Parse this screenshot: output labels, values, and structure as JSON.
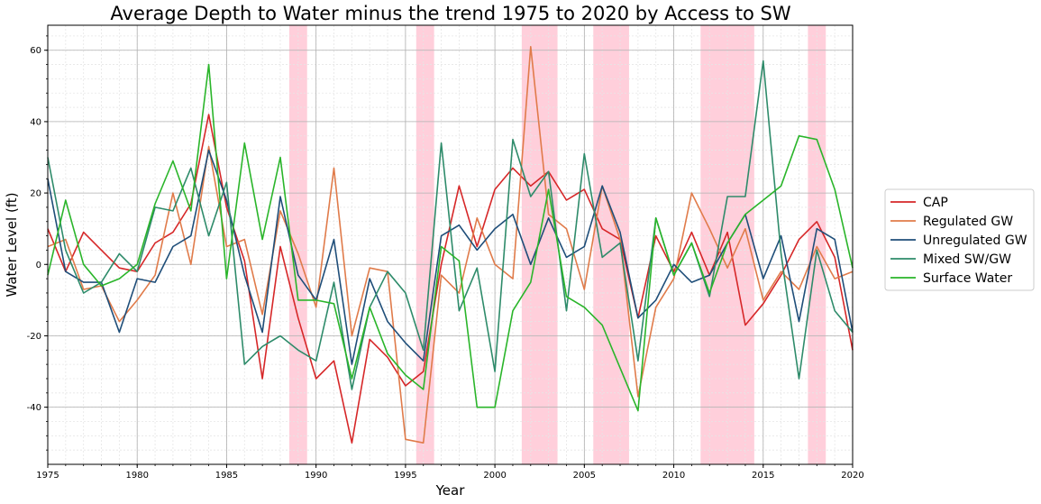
{
  "chart_data": {
    "type": "line",
    "title": "Average Depth to Water minus the trend 1975 to 2020 by Access to SW",
    "xlabel": "Year",
    "ylabel": "Water Level (ft)",
    "xlim": [
      1975,
      2020
    ],
    "ylim": [
      -56,
      67
    ],
    "xticks": [
      "1975",
      "1980",
      "1985",
      "1990",
      "1995",
      "2000",
      "2005",
      "2010",
      "2015",
      "2020"
    ],
    "yticks": [
      "-40",
      "-20",
      "0",
      "20",
      "40",
      "60"
    ],
    "grid": true,
    "legend_position": "right",
    "shaded_periods": [
      [
        1988.5,
        1989.5
      ],
      [
        1995.6,
        1996.6
      ],
      [
        2001.5,
        2003.5
      ],
      [
        2005.5,
        2007.5
      ],
      [
        2011.5,
        2014.5
      ],
      [
        2017.5,
        2018.5
      ]
    ],
    "shade_color": "#ffb6c8",
    "x": [
      1975,
      1976,
      1977,
      1978,
      1979,
      1980,
      1981,
      1982,
      1983,
      1984,
      1985,
      1986,
      1987,
      1988,
      1989,
      1990,
      1991,
      1992,
      1993,
      1994,
      1995,
      1996,
      1997,
      1998,
      1999,
      2000,
      2001,
      2002,
      2003,
      2004,
      2005,
      2006,
      2007,
      2008,
      2009,
      2010,
      2011,
      2012,
      2013,
      2014,
      2015,
      2016,
      2017,
      2018,
      2019,
      2020
    ],
    "series": [
      {
        "name": "CAP",
        "color": "#d62728",
        "values": [
          10,
          -2,
          9,
          4,
          -1,
          -2,
          6,
          9,
          17,
          42,
          16,
          1,
          -32,
          5,
          -15,
          -32,
          -27,
          -50,
          -21,
          -26,
          -34,
          -30,
          0,
          22,
          5,
          21,
          27,
          22,
          26,
          18,
          21,
          10,
          7,
          -15,
          8,
          -2,
          9,
          -3,
          9,
          -17,
          -11,
          -3,
          7,
          12,
          2,
          -24
        ]
      },
      {
        "name": "Regulated GW",
        "color": "#e07b4a",
        "values": [
          5,
          7,
          -7,
          -6,
          -16,
          -10,
          -3,
          20,
          0,
          33,
          5,
          7,
          -14,
          15,
          3,
          -12,
          27,
          -20,
          -1,
          -2,
          -49,
          -50,
          -3,
          -8,
          13,
          0,
          -4,
          61,
          14,
          10,
          -7,
          22,
          7,
          -37,
          -12,
          -4,
          20,
          10,
          -1,
          10,
          -10,
          -2,
          -7,
          5,
          -4,
          -2
        ]
      },
      {
        "name": "Unregulated GW",
        "color": "#1f4e79",
        "values": [
          24,
          -2,
          -5,
          -5,
          -19,
          -4,
          -5,
          5,
          8,
          32,
          18,
          -3,
          -19,
          19,
          -3,
          -10,
          7,
          -28,
          -4,
          -16,
          -22,
          -27,
          8,
          11,
          4,
          10,
          14,
          0,
          13,
          2,
          5,
          22,
          9,
          -15,
          -10,
          0,
          -5,
          -3,
          6,
          14,
          -4,
          8,
          -16,
          10,
          7,
          -19
        ]
      },
      {
        "name": "Mixed SW/GW",
        "color": "#2e8b6a",
        "values": [
          30,
          4,
          -8,
          -5,
          3,
          -2,
          16,
          15,
          27,
          8,
          23,
          -28,
          -23,
          -20,
          -24,
          -27,
          -5,
          -35,
          -12,
          -2,
          -8,
          -24,
          34,
          -13,
          -1,
          -30,
          35,
          19,
          26,
          -13,
          31,
          2,
          6,
          -27,
          13,
          -3,
          6,
          -9,
          19,
          19,
          57,
          3,
          -32,
          4,
          -13,
          -19
        ]
      },
      {
        "name": "Surface Water",
        "color": "#2ab52a",
        "values": [
          -3,
          18,
          0,
          -6,
          -4,
          0,
          17,
          29,
          15,
          56,
          -4,
          34,
          7,
          30,
          -10,
          -10,
          -11,
          -32,
          -12,
          -25,
          -31,
          -35,
          5,
          1,
          -40,
          -40,
          -13,
          -5,
          21,
          -9,
          -12,
          -17,
          -29,
          -41,
          13,
          -3,
          6,
          -8,
          6,
          14,
          18,
          22,
          36,
          35,
          21,
          -1
        ]
      }
    ]
  }
}
